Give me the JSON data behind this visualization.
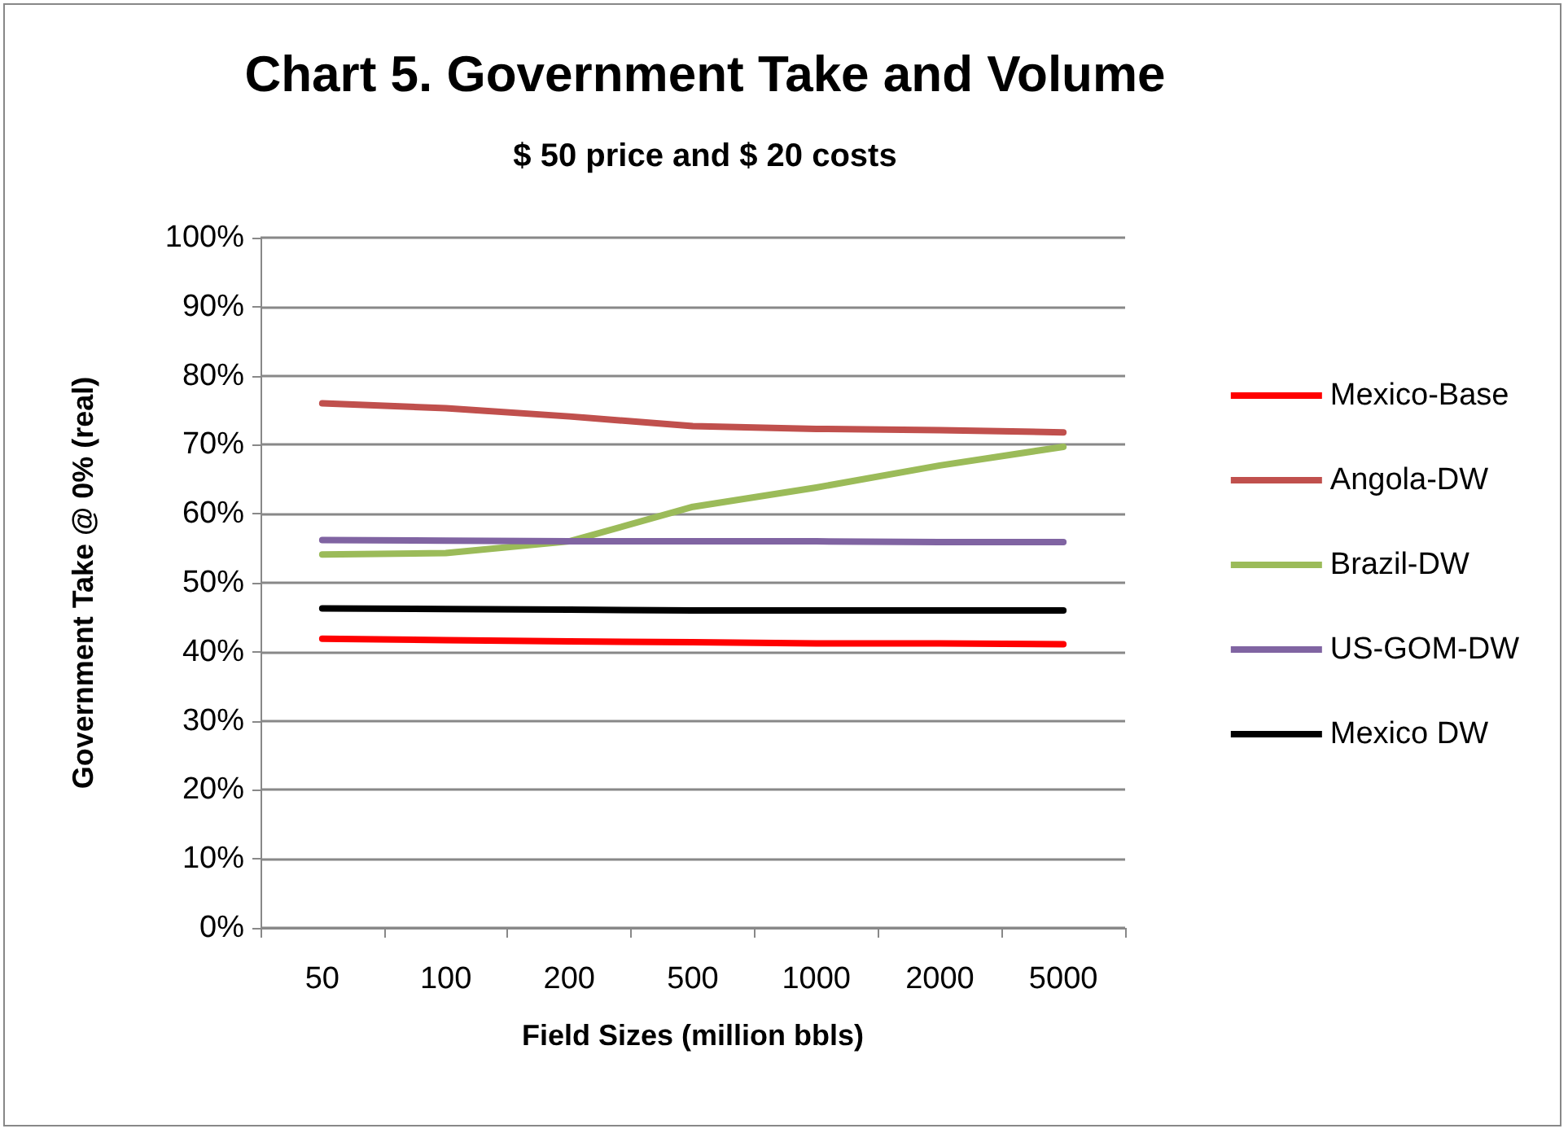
{
  "chart_data": {
    "type": "line",
    "title": "Chart 5. Government Take and Volume",
    "subtitle": "$ 50 price and $ 20 costs",
    "xlabel": "Field Sizes (million bbls)",
    "ylabel": "Government Take @ 0% (real)",
    "categories": [
      "50",
      "100",
      "200",
      "500",
      "1000",
      "2000",
      "5000"
    ],
    "series": [
      {
        "name": "Mexico-Base",
        "color": "#ff0000",
        "values": [
          41.9,
          41.7,
          41.5,
          41.4,
          41.2,
          41.2,
          41.1
        ]
      },
      {
        "name": "Angola-DW",
        "color": "#c0504d",
        "values": [
          76.0,
          75.3,
          74.1,
          72.7,
          72.3,
          72.1,
          71.8
        ]
      },
      {
        "name": "Brazil-DW",
        "color": "#9bbb59",
        "values": [
          54.1,
          54.3,
          56.0,
          61.0,
          63.8,
          67.0,
          69.7
        ]
      },
      {
        "name": "US-GOM-DW",
        "color": "#8064a2",
        "values": [
          56.2,
          56.1,
          56.0,
          56.0,
          56.0,
          55.9,
          55.9
        ]
      },
      {
        "name": "Mexico DW",
        "color": "#000000",
        "values": [
          46.3,
          46.2,
          46.1,
          46.0,
          46.0,
          46.0,
          46.0
        ]
      }
    ],
    "ylim": [
      0,
      100
    ],
    "yticks": [
      {
        "value": 0,
        "label": "0%"
      },
      {
        "value": 10,
        "label": "10%"
      },
      {
        "value": 20,
        "label": "20%"
      },
      {
        "value": 30,
        "label": "30%"
      },
      {
        "value": 40,
        "label": "40%"
      },
      {
        "value": 50,
        "label": "50%"
      },
      {
        "value": 60,
        "label": "60%"
      },
      {
        "value": 70,
        "label": "70%"
      },
      {
        "value": 80,
        "label": "80%"
      },
      {
        "value": 90,
        "label": "90%"
      },
      {
        "value": 100,
        "label": "100%"
      }
    ],
    "grid": "y",
    "legend": "right",
    "marker": "none",
    "line_style": "solid"
  }
}
